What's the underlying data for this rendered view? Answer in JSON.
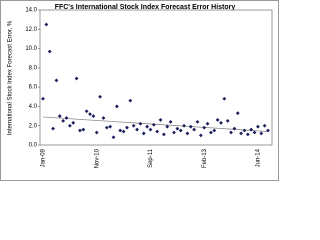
{
  "chart_data": {
    "type": "scatter",
    "title": "FFC's International Stock Index Forecast Error History",
    "y_label": "International Stock Index Forecast Error, %",
    "categories": [
      "Jan-09",
      null,
      null,
      null,
      null,
      null,
      null,
      null,
      null,
      null,
      null,
      null,
      null,
      null,
      null,
      null,
      "Nov-10",
      null,
      null,
      null,
      null,
      null,
      null,
      null,
      null,
      null,
      null,
      null,
      null,
      null,
      null,
      null,
      "Sep-11",
      null,
      null,
      null,
      null,
      null,
      null,
      null,
      null,
      null,
      null,
      null,
      null,
      null,
      null,
      null,
      "Feb-13",
      null,
      null,
      null,
      null,
      null,
      null,
      null,
      null,
      null,
      null,
      null,
      null,
      null,
      null,
      null,
      "Jun-14",
      null,
      null,
      null
    ],
    "values": [
      4.8,
      12.5,
      9.7,
      1.7,
      6.7,
      3.0,
      2.5,
      2.8,
      2.0,
      2.3,
      6.9,
      1.5,
      1.6,
      3.5,
      3.2,
      3.0,
      1.3,
      5.0,
      2.8,
      1.8,
      1.9,
      0.8,
      4.0,
      1.5,
      1.4,
      1.8,
      4.6,
      2.0,
      1.6,
      2.2,
      1.2,
      1.9,
      1.6,
      2.1,
      1.4,
      2.6,
      1.1,
      1.9,
      2.4,
      1.3,
      1.7,
      1.5,
      2.0,
      1.2,
      1.9,
      1.6,
      2.4,
      1.0,
      1.8,
      2.2,
      1.3,
      1.5,
      2.6,
      2.3,
      4.8,
      2.5,
      1.3,
      1.7,
      3.3,
      1.2,
      1.5,
      1.1,
      1.6,
      1.3,
      1.9,
      1.2,
      2.0,
      1.5
    ],
    "color": "#1a1f5c",
    "trend": [
      2.9,
      1.4
    ],
    "trend_color": "#8a8a8a",
    "ylim": [
      0,
      14
    ],
    "yticks": [
      {
        "value": 0,
        "label": "0.0"
      },
      {
        "value": 2,
        "label": "2.0"
      },
      {
        "value": 4,
        "label": "4.0"
      },
      {
        "value": 6,
        "label": "6.0"
      },
      {
        "value": 8,
        "label": "8.0"
      },
      {
        "value": 10,
        "label": "10.0"
      },
      {
        "value": 12,
        "label": "12.0"
      },
      {
        "value": 14,
        "label": "14.0"
      }
    ],
    "grid": false
  }
}
